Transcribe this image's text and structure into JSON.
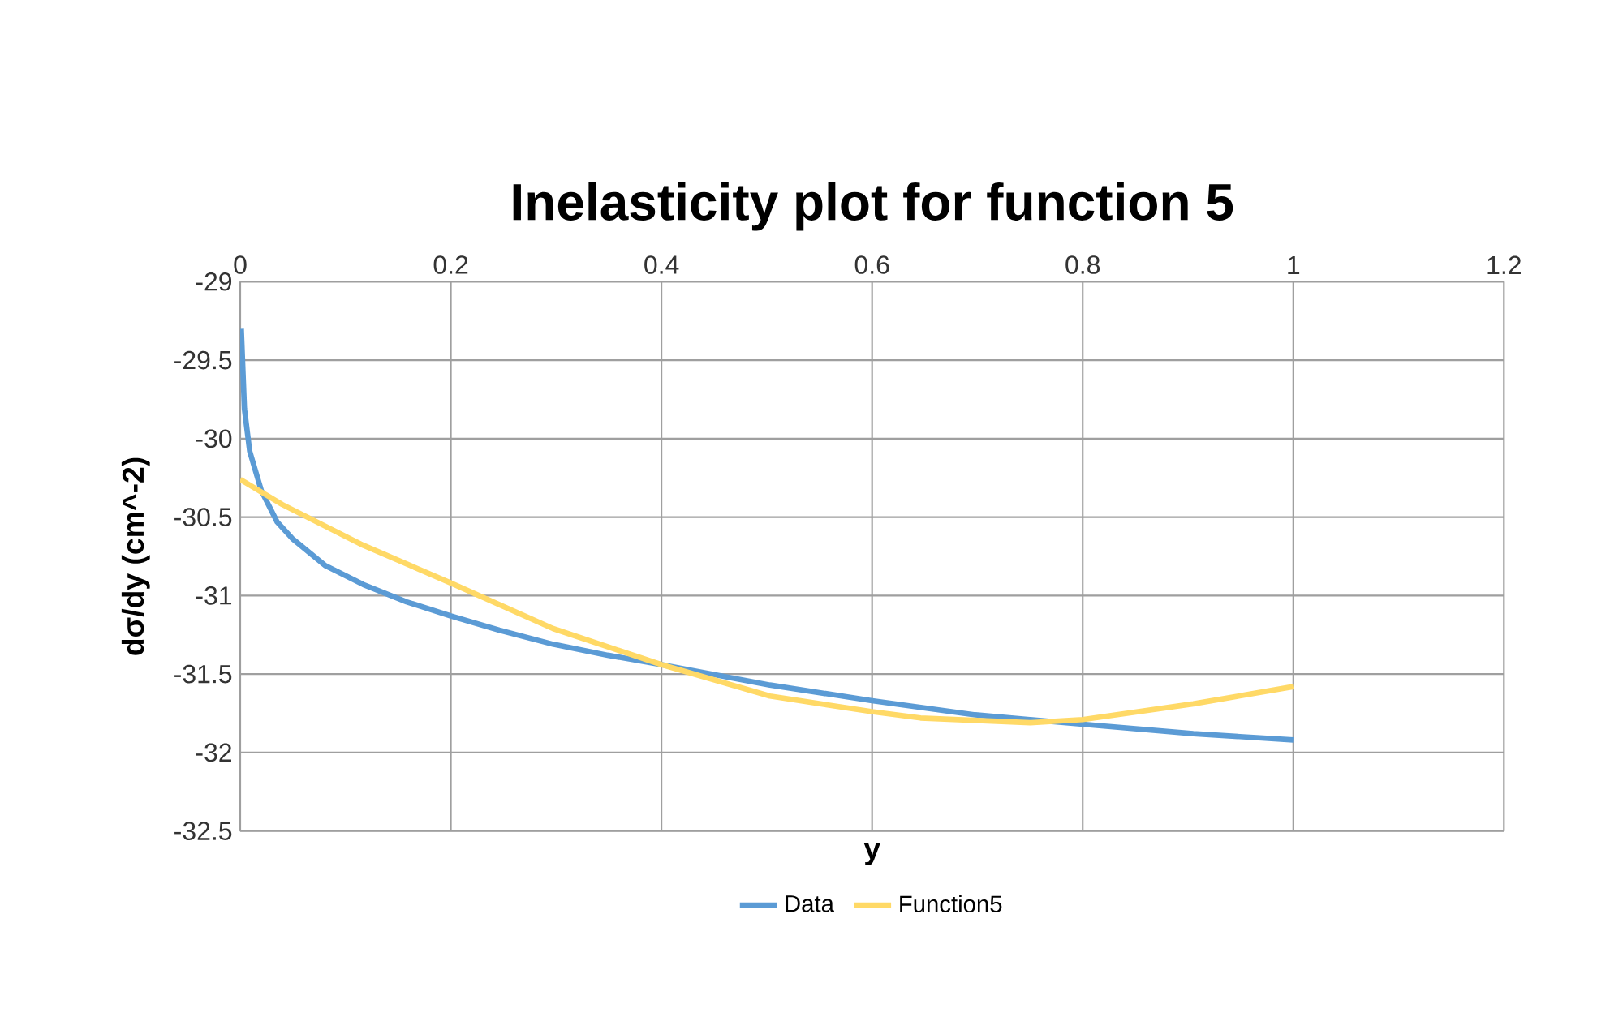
{
  "chart_data": {
    "type": "line",
    "title": "Inelasticity plot for function 5",
    "xlabel": "y",
    "ylabel": "dσ/dy (cm^-2)",
    "xlim": [
      0,
      1.2
    ],
    "xticks": [
      0,
      0.2,
      0.4,
      0.6,
      0.8,
      1,
      1.2
    ],
    "ylim": [
      -32.5,
      -29
    ],
    "yticks": [
      -32.5,
      -32,
      -31.5,
      -31,
      -30.5,
      -30,
      -29.5,
      -29
    ],
    "grid": true,
    "legend": "bottom",
    "line_style": "solid",
    "series": [
      {
        "name": "Data",
        "color": "#5b9bd5",
        "x": [
          0.001,
          0.004,
          0.009,
          0.02,
          0.035,
          0.05,
          0.081,
          0.117,
          0.158,
          0.2,
          0.246,
          0.297,
          0.349,
          0.4,
          0.503,
          0.6,
          0.698,
          0.8,
          0.905,
          1.0
        ],
        "values": [
          -29.3,
          -29.81,
          -30.08,
          -30.33,
          -30.53,
          -30.64,
          -30.81,
          -30.93,
          -31.04,
          -31.13,
          -31.22,
          -31.31,
          -31.38,
          -31.44,
          -31.57,
          -31.67,
          -31.76,
          -31.82,
          -31.88,
          -31.92
        ]
      },
      {
        "name": "Function5",
        "color": "#ffd966",
        "x": [
          0,
          0.04,
          0.117,
          0.2,
          0.297,
          0.4,
          0.503,
          0.6,
          0.646,
          0.75,
          0.8,
          0.905,
          1.0
        ],
        "values": [
          -30.26,
          -30.42,
          -30.68,
          -30.92,
          -31.21,
          -31.44,
          -31.64,
          -31.74,
          -31.78,
          -31.81,
          -31.79,
          -31.69,
          -31.58
        ]
      }
    ]
  }
}
